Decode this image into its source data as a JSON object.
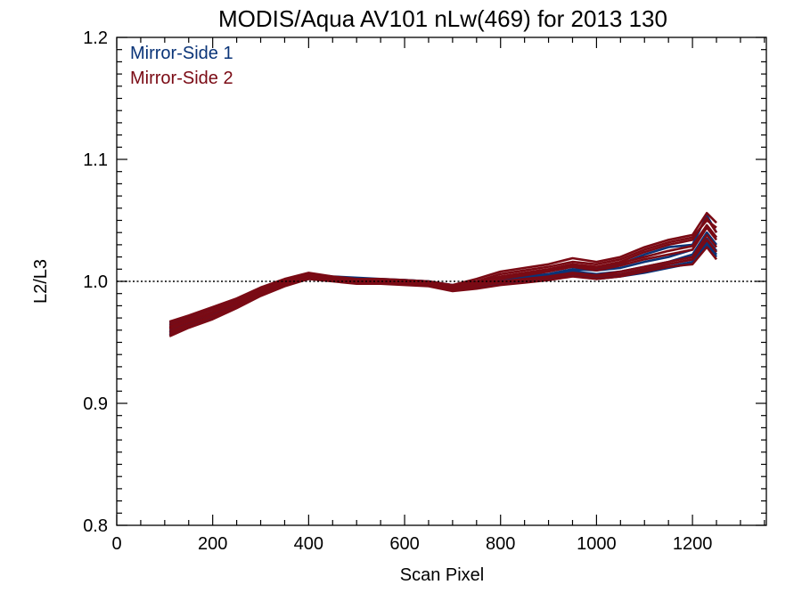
{
  "chart_data": {
    "type": "line",
    "title": "MODIS/Aqua AV101 nLw(469) for 2013 130",
    "xlabel": "Scan Pixel",
    "ylabel": "L2/L3",
    "xlim": [
      0,
      1354
    ],
    "ylim": [
      0.8,
      1.2
    ],
    "x_ticks": [
      0,
      200,
      400,
      600,
      800,
      1000,
      1200
    ],
    "x_tick_labels": [
      "0",
      "200",
      "400",
      "600",
      "800",
      "1000",
      "1200"
    ],
    "y_ticks": [
      0.8,
      0.9,
      1.0,
      1.1,
      1.2
    ],
    "y_tick_labels": [
      "0.8",
      "0.9",
      "1.0",
      "1.1",
      "1.2"
    ],
    "reference_line": 1.0,
    "legend_position": "top-left",
    "x": [
      110,
      150,
      200,
      250,
      300,
      350,
      400,
      450,
      500,
      550,
      600,
      650,
      700,
      750,
      800,
      850,
      900,
      950,
      1000,
      1050,
      1100,
      1150,
      1200,
      1230,
      1250
    ],
    "series": [
      {
        "name": "Mirror-Side 1",
        "color": "#0a3478",
        "curves": [
          [
            0.962,
            0.968,
            0.975,
            0.982,
            0.992,
            0.999,
            1.004,
            1.002,
            1.001,
            1.0,
            1.0,
            0.999,
            0.996,
            0.997,
            1.0,
            1.002,
            1.004,
            1.008,
            1.006,
            1.008,
            1.012,
            1.016,
            1.022,
            1.04,
            1.03
          ],
          [
            0.958,
            0.965,
            0.972,
            0.98,
            0.99,
            0.998,
            1.003,
            1.001,
            1.0,
            0.999,
            0.999,
            0.998,
            0.994,
            0.996,
            0.999,
            1.0,
            1.003,
            1.006,
            1.004,
            1.006,
            1.01,
            1.014,
            1.018,
            1.035,
            1.025
          ],
          [
            0.966,
            0.971,
            0.978,
            0.985,
            0.994,
            1.001,
            1.006,
            1.004,
            1.003,
            1.002,
            1.001,
            1.0,
            0.997,
            0.999,
            1.002,
            1.004,
            1.006,
            1.01,
            1.009,
            1.011,
            1.016,
            1.02,
            1.026,
            1.046,
            1.036
          ],
          [
            0.96,
            0.966,
            0.973,
            0.981,
            0.991,
            0.999,
            1.004,
            1.003,
            1.001,
            1.001,
            1.0,
            0.999,
            0.995,
            0.997,
            1.001,
            1.003,
            1.005,
            1.009,
            1.002,
            1.004,
            1.007,
            1.011,
            1.015,
            1.032,
            1.022
          ],
          [
            0.964,
            0.97,
            0.977,
            0.984,
            0.993,
            1.0,
            1.005,
            1.003,
            1.002,
            1.001,
            1.001,
            1.0,
            0.996,
            0.998,
            1.001,
            1.003,
            1.005,
            1.009,
            1.01,
            1.014,
            1.022,
            1.028,
            1.03,
            1.054,
            1.04
          ],
          [
            0.956,
            0.963,
            0.97,
            0.979,
            0.989,
            0.997,
            1.002,
            1.001,
            0.999,
            0.999,
            0.998,
            0.997,
            0.993,
            0.995,
            0.998,
            1.0,
            1.002,
            1.005,
            1.003,
            1.005,
            1.009,
            1.012,
            1.016,
            1.03,
            1.02
          ]
        ]
      },
      {
        "name": "Mirror-Side 2",
        "color": "#7a0a14",
        "curves": [
          [
            0.963,
            0.968,
            0.975,
            0.983,
            0.993,
            1.0,
            1.005,
            1.002,
            1.0,
            1.0,
            0.999,
            0.998,
            0.995,
            0.999,
            1.004,
            1.007,
            1.01,
            1.014,
            1.012,
            1.016,
            1.024,
            1.03,
            1.034,
            1.052,
            1.04
          ],
          [
            0.959,
            0.965,
            0.972,
            0.98,
            0.99,
            0.998,
            1.003,
            1.001,
            0.999,
            0.999,
            0.998,
            0.997,
            0.993,
            0.996,
            1.0,
            1.002,
            1.004,
            1.007,
            1.005,
            1.008,
            1.012,
            1.016,
            1.02,
            1.038,
            1.028
          ],
          [
            0.967,
            0.972,
            0.979,
            0.986,
            0.995,
            1.002,
            1.007,
            1.004,
            1.002,
            1.002,
            1.001,
            1.0,
            0.997,
            1.002,
            1.008,
            1.011,
            1.014,
            1.019,
            1.016,
            1.02,
            1.028,
            1.034,
            1.038,
            1.056,
            1.048
          ],
          [
            0.955,
            0.962,
            0.969,
            0.978,
            0.988,
            0.996,
            1.002,
            1.0,
            0.998,
            0.998,
            0.997,
            0.996,
            0.992,
            0.994,
            0.997,
            0.999,
            1.001,
            1.004,
            1.002,
            1.004,
            1.008,
            1.012,
            1.014,
            1.028,
            1.018
          ],
          [
            0.961,
            0.967,
            0.974,
            0.982,
            0.992,
            0.999,
            1.004,
            1.002,
            1.0,
            1.0,
            0.999,
            0.998,
            0.994,
            0.997,
            1.002,
            1.005,
            1.008,
            1.012,
            1.009,
            1.013,
            1.018,
            1.022,
            1.026,
            1.044,
            1.034
          ],
          [
            0.965,
            0.97,
            0.977,
            0.984,
            0.994,
            1.001,
            1.006,
            1.003,
            1.001,
            1.001,
            1.0,
            0.999,
            0.996,
            1.0,
            1.006,
            1.009,
            1.012,
            1.016,
            1.014,
            1.018,
            1.026,
            1.032,
            1.036,
            1.05,
            1.044
          ],
          [
            0.957,
            0.964,
            0.971,
            0.979,
            0.989,
            0.997,
            1.003,
            1.001,
            0.999,
            0.999,
            0.998,
            0.997,
            0.993,
            0.996,
            0.999,
            1.001,
            1.003,
            1.006,
            1.004,
            1.006,
            1.01,
            1.014,
            1.018,
            1.034,
            1.024
          ],
          [
            0.962,
            0.968,
            0.975,
            0.983,
            0.993,
            1.0,
            1.005,
            1.003,
            1.001,
            1.0,
            1.0,
            0.999,
            0.995,
            0.998,
            1.003,
            1.006,
            1.009,
            1.013,
            1.011,
            1.015,
            1.02,
            1.025,
            1.029,
            1.046,
            1.036
          ]
        ]
      }
    ]
  }
}
